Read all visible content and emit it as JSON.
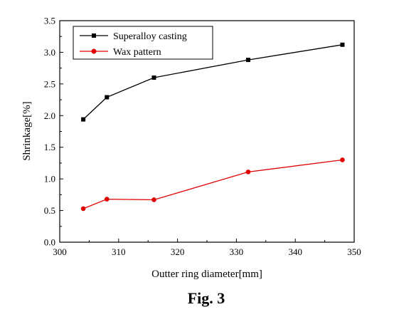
{
  "chart_data": {
    "type": "line",
    "xlabel": "Outter ring diameter[mm]",
    "ylabel": "Shrinkage[%]",
    "xlim": [
      300,
      350
    ],
    "ylim": [
      0.0,
      3.5
    ],
    "xticks": [
      "300",
      "310",
      "320",
      "330",
      "340",
      "350"
    ],
    "yticks": [
      "0.0",
      "0.5",
      "1.0",
      "1.5",
      "2.0",
      "2.5",
      "3.0",
      "3.5"
    ],
    "legend_position": "top-left",
    "grid": false,
    "series": [
      {
        "name": "Superalloy casting",
        "color": "#000000",
        "marker": "square",
        "x": [
          304,
          308,
          316,
          332,
          348
        ],
        "y": [
          1.94,
          2.29,
          2.6,
          2.88,
          3.12
        ]
      },
      {
        "name": "Wax pattern",
        "color": "#e00000",
        "marker": "circle",
        "x": [
          304,
          308,
          316,
          332,
          348
        ],
        "y": [
          0.53,
          0.68,
          0.67,
          1.11,
          1.3
        ]
      }
    ]
  },
  "caption": "Fig. 3"
}
